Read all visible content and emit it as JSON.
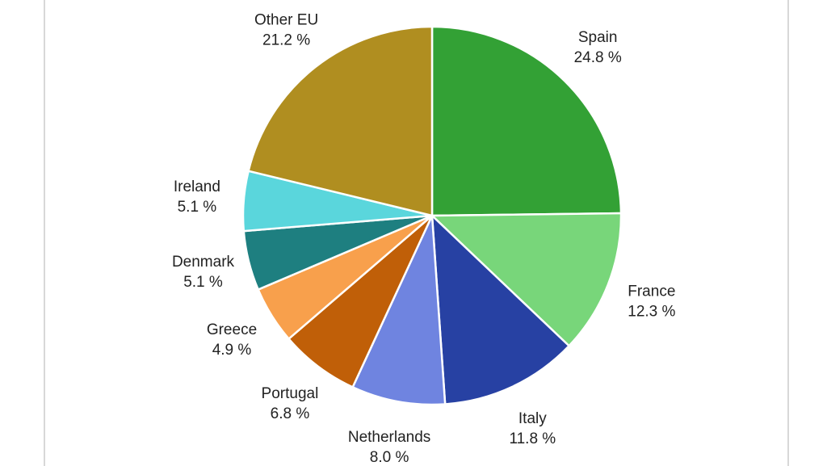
{
  "chart_data": {
    "type": "pie",
    "categories": [
      "Spain",
      "France",
      "Italy",
      "Netherlands",
      "Portugal",
      "Greece",
      "Denmark",
      "Ireland",
      "Other EU"
    ],
    "values": [
      24.8,
      12.3,
      11.8,
      8.0,
      6.8,
      4.9,
      5.1,
      5.1,
      21.2
    ],
    "value_labels": [
      "24.8 %",
      "12.3 %",
      "11.8 %",
      "8.0 %",
      "6.8 %",
      "4.9 %",
      "5.1 %",
      "5.1 %",
      "21.2 %"
    ],
    "colors": [
      "#33a135",
      "#78d67a",
      "#2741a3",
      "#6f84e0",
      "#c05f08",
      "#f8a04c",
      "#1e7f80",
      "#5ad6dc",
      "#b08e20"
    ]
  }
}
